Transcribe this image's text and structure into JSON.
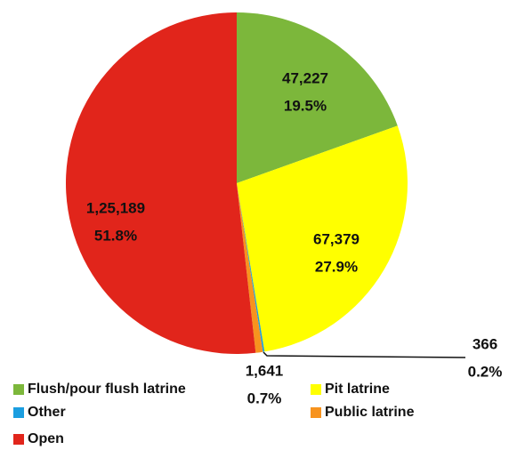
{
  "chart_data": {
    "type": "pie",
    "categories": [
      "Flush/pour flush latrine",
      "Pit latrine",
      "Other",
      "Public latrine",
      "Open"
    ],
    "values": [
      47227,
      67379,
      366,
      1641,
      125189
    ],
    "value_labels": [
      "47,227",
      "67,379",
      "366",
      "1,641",
      "1,25,189"
    ],
    "percent_labels": [
      "19.5%",
      "27.9%",
      "0.2%",
      "0.7%",
      "51.8%"
    ],
    "colors": [
      "#7cb73b",
      "#ffff00",
      "#1b9ee0",
      "#f7931e",
      "#e1251b"
    ],
    "legend": "bottom"
  }
}
